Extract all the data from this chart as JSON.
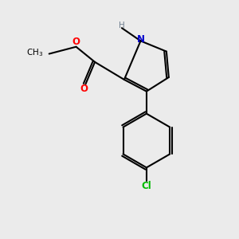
{
  "bg_color": "#ebebeb",
  "bond_color": "#000000",
  "bond_width": 1.5,
  "atom_colors": {
    "N": "#0000cc",
    "O": "#ff0000",
    "Cl": "#00bb00",
    "H": "#708090",
    "C": "#000000"
  },
  "font_size_atom": 8.5,
  "font_size_H": 7.5,
  "font_size_CH3": 7.5,
  "font_size_Cl": 8.5
}
